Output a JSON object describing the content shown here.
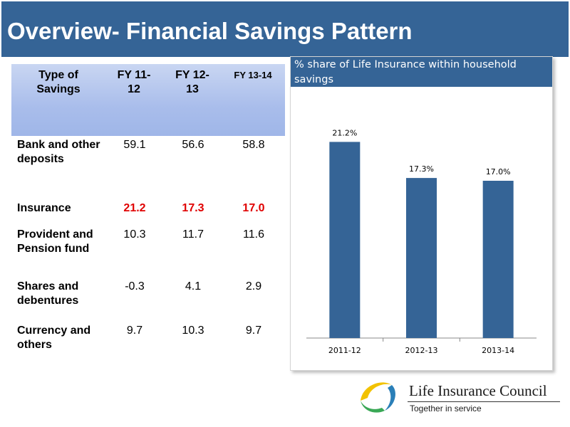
{
  "slide": {
    "title": "Overview- Financial Savings Pattern"
  },
  "table": {
    "headers": [
      "Type of Savings",
      "FY 11-12",
      "FY 12-13",
      "FY 13-14"
    ],
    "rows": [
      {
        "label": "Bank and other deposits",
        "values": [
          "59.1",
          "56.6",
          "58.8"
        ],
        "highlight": false
      },
      {
        "label": "Insurance",
        "values": [
          "21.2",
          "17.3",
          "17.0"
        ],
        "highlight": true
      },
      {
        "label": "Provident and Pension fund",
        "values": [
          "10.3",
          "11.7",
          "11.6"
        ],
        "highlight": false
      },
      {
        "label": "Shares and debentures",
        "values": [
          "-0.3",
          "4.1",
          "2.9"
        ],
        "highlight": false
      },
      {
        "label": "Currency and others",
        "values": [
          "9.7",
          "10.3",
          "9.7"
        ],
        "highlight": false
      }
    ],
    "highlight_color": "#e00000"
  },
  "chart_data": {
    "type": "bar",
    "title": "% share of Life Insurance within household savings",
    "categories": [
      "2011-12",
      "2012-13",
      "2013-14"
    ],
    "values": [
      21.2,
      17.3,
      17.0
    ],
    "data_labels": [
      "21.2%",
      "17.3%",
      "17.0%"
    ],
    "xlabel": "",
    "ylabel": "",
    "ylim": [
      0,
      25
    ],
    "grid": false,
    "legend": "none",
    "bar_color": "#356496"
  },
  "logo": {
    "name": "Life Insurance Council",
    "tagline": "Together in service",
    "icon": "lic-swoosh-logo-icon"
  },
  "colors": {
    "accent": "#356496",
    "header_fill": "#a9bdeb"
  }
}
